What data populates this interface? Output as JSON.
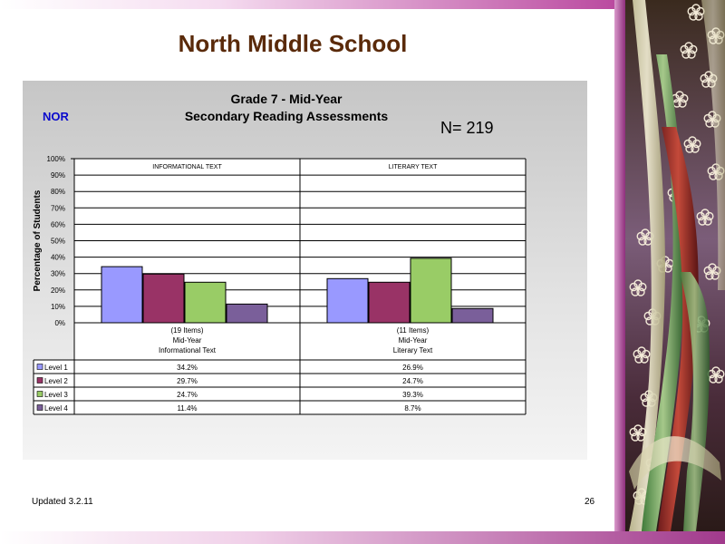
{
  "slide": {
    "title": "North Middle School",
    "school_code": "NOR",
    "n_count": "N=  219",
    "footer_updated": "Updated  3.2.11",
    "page_number": "26"
  },
  "colors": {
    "title": "#5a2a0a",
    "school_code": "#0a0acc",
    "level_1": "#9999ff",
    "level_2": "#993366",
    "level_3": "#99cc66",
    "level_4": "#7a5f9a"
  },
  "chart_data": {
    "type": "bar",
    "title": "Grade 7 - Mid-Year",
    "subtitle": "Secondary Reading Assessments",
    "ylabel": "Percentage of Students",
    "ylim": [
      0,
      100
    ],
    "yticks": [
      "0%",
      "10%",
      "20%",
      "30%",
      "40%",
      "50%",
      "60%",
      "70%",
      "80%",
      "90%",
      "100%"
    ],
    "grid": true,
    "groups": [
      {
        "header": "INFORMATIONAL TEXT",
        "category_lines": [
          "(19 Items)",
          "Mid-Year",
          "Informational Text"
        ]
      },
      {
        "header": "LITERARY TEXT",
        "category_lines": [
          "(11 Items)",
          "Mid-Year",
          "Literary Text"
        ]
      }
    ],
    "series": [
      {
        "name": "Level 1",
        "values": [
          34.2,
          26.9
        ],
        "labels": [
          "34.2%",
          "26.9%"
        ]
      },
      {
        "name": "Level 2",
        "values": [
          29.7,
          24.7
        ],
        "labels": [
          "29.7%",
          "24.7%"
        ]
      },
      {
        "name": "Level 3",
        "values": [
          24.7,
          39.3
        ],
        "labels": [
          "24.7%",
          "39.3%"
        ]
      },
      {
        "name": "Level 4",
        "values": [
          11.4,
          8.7
        ],
        "labels": [
          "11.4%",
          "8.7%"
        ]
      }
    ]
  }
}
